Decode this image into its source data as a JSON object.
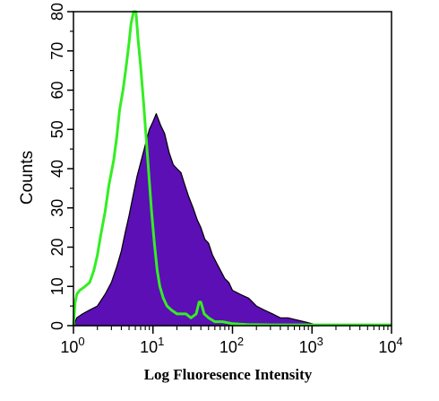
{
  "chart_data": {
    "type": "area",
    "xlabel": "Log Fluoresence Intensity",
    "ylabel": "Counts",
    "x_scale": "log",
    "xlim": [
      1,
      10000
    ],
    "ylim": [
      0,
      80
    ],
    "x_ticks": [
      {
        "base": "10",
        "exp": "0"
      },
      {
        "base": "10",
        "exp": "1"
      },
      {
        "base": "10",
        "exp": "2"
      },
      {
        "base": "10",
        "exp": "3"
      },
      {
        "base": "10",
        "exp": "4"
      }
    ],
    "y_ticks": [
      "0",
      "10",
      "20",
      "30",
      "40",
      "50",
      "60",
      "70",
      "80"
    ],
    "grid": false,
    "legend": "none",
    "series": [
      {
        "style": "filled",
        "fill_color": "#5b0fb5",
        "edge_color": "#000000",
        "points": [
          [
            1.0,
            0
          ],
          [
            1.1,
            2
          ],
          [
            1.3,
            3
          ],
          [
            1.6,
            4
          ],
          [
            2.0,
            5
          ],
          [
            2.5,
            8
          ],
          [
            3.0,
            11
          ],
          [
            3.5,
            15
          ],
          [
            4.0,
            19
          ],
          [
            4.5,
            24
          ],
          [
            5.0,
            28
          ],
          [
            5.6,
            33
          ],
          [
            6.3,
            38
          ],
          [
            7.1,
            42
          ],
          [
            8.0,
            46
          ],
          [
            9.0,
            50
          ],
          [
            10.0,
            52
          ],
          [
            11.0,
            54
          ],
          [
            12.5,
            51
          ],
          [
            14.0,
            49
          ],
          [
            16.0,
            44
          ],
          [
            18.0,
            41
          ],
          [
            20.0,
            40
          ],
          [
            22.5,
            39
          ],
          [
            25.0,
            36
          ],
          [
            28.0,
            33
          ],
          [
            32.0,
            30
          ],
          [
            36.0,
            27
          ],
          [
            40.0,
            25
          ],
          [
            45.0,
            22
          ],
          [
            50.0,
            21
          ],
          [
            56.0,
            18
          ],
          [
            63.0,
            16
          ],
          [
            71.0,
            14
          ],
          [
            80.0,
            12
          ],
          [
            90.0,
            11
          ],
          [
            100.0,
            9
          ],
          [
            125.0,
            8
          ],
          [
            160.0,
            7
          ],
          [
            200.0,
            5
          ],
          [
            250.0,
            4
          ],
          [
            320.0,
            3
          ],
          [
            400.0,
            2
          ],
          [
            500.0,
            2
          ],
          [
            630.0,
            1.5
          ],
          [
            800.0,
            1
          ],
          [
            1000.0,
            0.5
          ],
          [
            1200.0,
            0
          ]
        ]
      },
      {
        "style": "line",
        "line_color": "#33ee22",
        "points": [
          [
            1.0,
            0
          ],
          [
            1.05,
            6
          ],
          [
            1.1,
            8
          ],
          [
            1.2,
            9
          ],
          [
            1.4,
            10
          ],
          [
            1.6,
            11
          ],
          [
            1.8,
            14
          ],
          [
            2.0,
            18
          ],
          [
            2.2,
            23
          ],
          [
            2.5,
            29
          ],
          [
            2.8,
            36
          ],
          [
            3.2,
            42
          ],
          [
            3.5,
            48
          ],
          [
            3.8,
            55
          ],
          [
            4.2,
            60
          ],
          [
            4.6,
            66
          ],
          [
            5.0,
            72
          ],
          [
            5.3,
            77
          ],
          [
            5.7,
            81
          ],
          [
            6.1,
            80
          ],
          [
            6.5,
            73
          ],
          [
            7.0,
            66
          ],
          [
            7.6,
            57
          ],
          [
            8.2,
            48
          ],
          [
            8.9,
            38
          ],
          [
            9.6,
            29
          ],
          [
            10.4,
            21
          ],
          [
            11.3,
            14
          ],
          [
            12.2,
            10
          ],
          [
            13.5,
            7
          ],
          [
            15.0,
            5
          ],
          [
            17.0,
            4
          ],
          [
            20.0,
            3
          ],
          [
            23.0,
            3
          ],
          [
            26.0,
            3
          ],
          [
            30.0,
            2
          ],
          [
            35.0,
            3
          ],
          [
            38.0,
            6
          ],
          [
            40.0,
            6
          ],
          [
            44.0,
            3
          ],
          [
            50.0,
            2
          ],
          [
            60.0,
            1
          ],
          [
            75.0,
            1
          ],
          [
            100.0,
            0.5
          ],
          [
            150.0,
            0.3
          ],
          [
            300.0,
            0.2
          ],
          [
            1000.0,
            0.2
          ],
          [
            3000.0,
            0.2
          ],
          [
            10000.0,
            0.2
          ]
        ]
      }
    ]
  }
}
